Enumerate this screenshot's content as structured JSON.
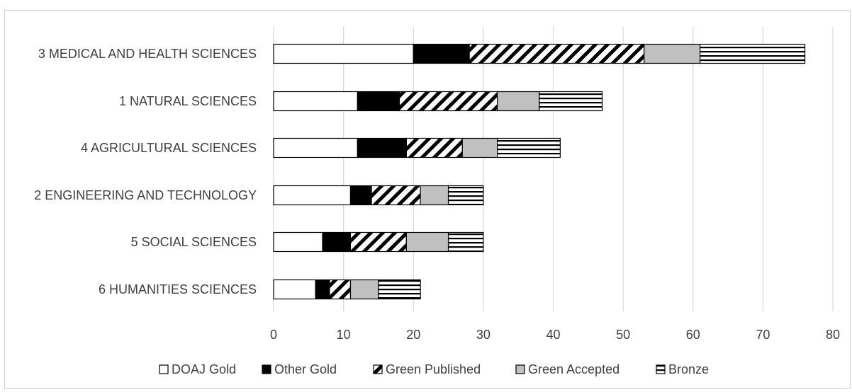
{
  "chart_data": {
    "type": "bar",
    "orientation": "horizontal",
    "stacked": true,
    "categories": [
      "3 MEDICAL AND HEALTH SCIENCES",
      "1 NATURAL SCIENCES",
      "4 AGRICULTURAL SCIENCES",
      "2 ENGINEERING AND TECHNOLOGY",
      "5 SOCIAL SCIENCES",
      "6 HUMANITIES SCIENCES"
    ],
    "series": [
      {
        "name": "DOAJ Gold",
        "values": [
          20,
          12,
          12,
          11,
          7,
          6
        ],
        "fill": "white"
      },
      {
        "name": "Other Gold",
        "values": [
          8,
          6,
          7,
          3,
          4,
          2
        ],
        "fill": "black"
      },
      {
        "name": "Green Published",
        "values": [
          25,
          14,
          8,
          7,
          8,
          3
        ],
        "fill": "diagonal-hatch"
      },
      {
        "name": "Green Accepted",
        "values": [
          8,
          6,
          5,
          4,
          6,
          4
        ],
        "fill": "gray"
      },
      {
        "name": "Bronze",
        "values": [
          15,
          9,
          9,
          5,
          5,
          6
        ],
        "fill": "horizontal-stripes"
      }
    ],
    "xlim": [
      0,
      80
    ],
    "xticks": [
      "0",
      "10",
      "20",
      "30",
      "40",
      "50",
      "60",
      "70",
      "80"
    ],
    "title": "",
    "xlabel": "",
    "ylabel": "",
    "grid": "vertical",
    "legend_position": "bottom",
    "colors": {
      "black": "#000000",
      "gray": "#c0c0c0",
      "grid": "#d9d9d9",
      "text": "#3f3f3f"
    }
  }
}
